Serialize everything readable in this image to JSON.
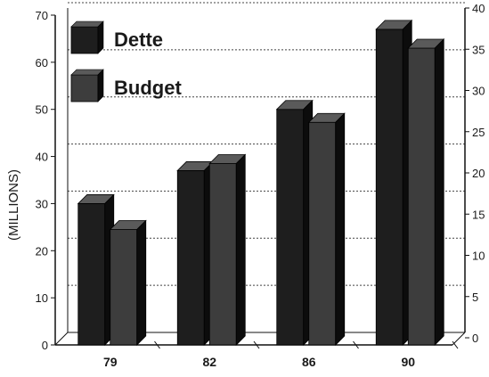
{
  "chart_data": {
    "type": "bar",
    "categories": [
      "79",
      "82",
      "86",
      "90"
    ],
    "series": [
      {
        "name": "Dette",
        "values": [
          30,
          37,
          50,
          67
        ],
        "color": "#1e1e1e"
      },
      {
        "name": "Budget",
        "values": [
          14,
          22,
          27,
          36
        ],
        "color": "#3d3d3d"
      }
    ],
    "ylabel": "(MILLIONS)",
    "ylim": [
      0,
      70
    ],
    "yticks": [
      "0",
      "10",
      "20",
      "30",
      "40",
      "50",
      "60",
      "70"
    ],
    "ylabel_right": "",
    "ylim_right": [
      0,
      40
    ],
    "yticks_right": [
      "0",
      "5",
      "10",
      "15",
      "20",
      "25",
      "30",
      "35",
      "40"
    ],
    "series_axis": {
      "Dette": "left",
      "Budget": "right"
    },
    "grid": true,
    "legend_position": "top-left"
  }
}
